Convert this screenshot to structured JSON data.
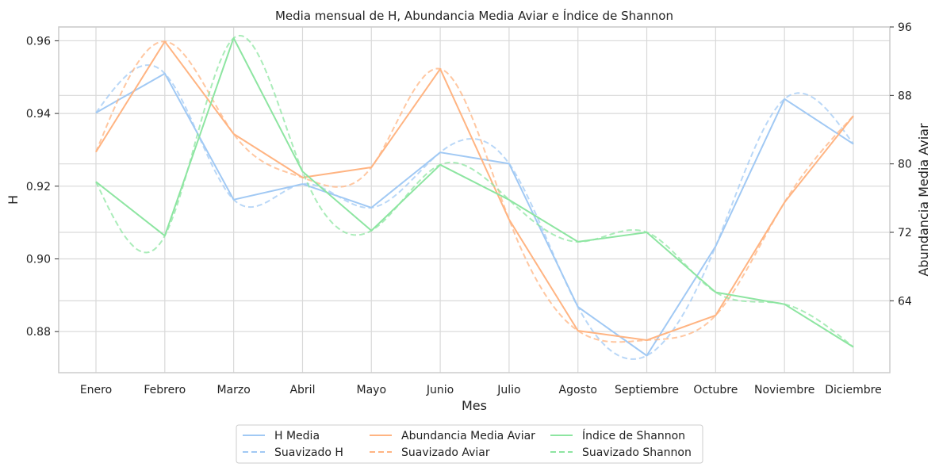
{
  "chart_data": {
    "type": "line",
    "title": "Media mensual de H, Abundancia Media Aviar e Índice de Shannon",
    "xlabel": "Mes",
    "ylabel_left": "H",
    "ylabel_right": "Abundancia Media Aviar",
    "categories": [
      "Enero",
      "Febrero",
      "Marzo",
      "Abril",
      "Mayo",
      "Junio",
      "Julio",
      "Agosto",
      "Septiembre",
      "Octubre",
      "Noviembre",
      "Diciembre"
    ],
    "ylim_left": [
      0.8687,
      0.9638
    ],
    "yticks_left": [
      "0.88",
      "0.90",
      "0.92",
      "0.94",
      "0.96"
    ],
    "ylim_right": [
      55.6,
      96
    ],
    "yticks_right": [
      "64",
      "72",
      "80",
      "88",
      "96"
    ],
    "grid": true,
    "legend_position": "bottom-center",
    "colors": {
      "h": "#a1c9f4",
      "aviar": "#ffb482",
      "shannon": "#8de5a1"
    },
    "series": [
      {
        "name": "H Media",
        "axis": "left",
        "style": "solid",
        "color_key": "h",
        "values": [
          0.9402,
          0.951,
          0.9163,
          0.9206,
          0.9141,
          0.9293,
          0.9262,
          0.8868,
          0.8734,
          0.9035,
          0.944,
          0.9316
        ]
      },
      {
        "name": "Suavizado H",
        "axis": "left",
        "style": "dashed",
        "color_key": "h",
        "values": [
          0.9402,
          0.951,
          0.9163,
          0.9206,
          0.9141,
          0.9293,
          0.9262,
          0.8868,
          0.8734,
          0.9035,
          0.944,
          0.9316
        ]
      },
      {
        "name": "Abundancia Media Aviar",
        "axis": "right",
        "style": "solid",
        "color_key": "aviar",
        "values": [
          81.4,
          94.3,
          83.5,
          78.4,
          79.6,
          91.1,
          73.5,
          60.5,
          59.4,
          62.3,
          75.5,
          85.6
        ]
      },
      {
        "name": "Suavizado Aviar",
        "axis": "right",
        "style": "dashed",
        "color_key": "aviar",
        "values": [
          81.4,
          94.3,
          83.5,
          78.4,
          79.6,
          91.1,
          73.5,
          60.5,
          59.4,
          62.3,
          75.5,
          85.6
        ]
      },
      {
        "name": "Índice de Shannon",
        "axis": "right",
        "style": "solid",
        "color_key": "shannon",
        "values": [
          77.9,
          71.6,
          94.7,
          79.1,
          72.2,
          79.9,
          75.8,
          70.9,
          72.0,
          65.0,
          63.6,
          58.6
        ]
      },
      {
        "name": "Suavizado Shannon",
        "axis": "right",
        "style": "dashed",
        "color_key": "shannon",
        "values": [
          77.9,
          71.6,
          94.7,
          79.1,
          72.2,
          79.9,
          75.8,
          70.9,
          72.0,
          65.0,
          63.6,
          58.6
        ]
      }
    ]
  }
}
